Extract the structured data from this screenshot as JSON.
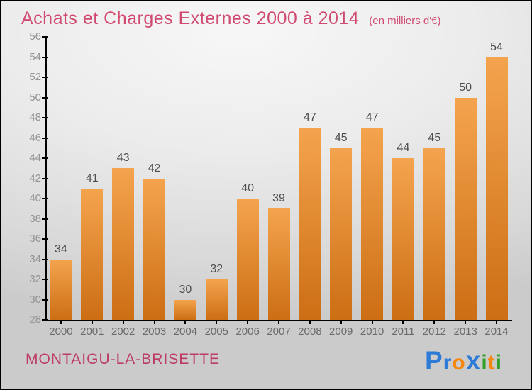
{
  "title": {
    "text": "Achats et Charges Externes 2000 à 2014",
    "subtitle": "(en milliers d'€)"
  },
  "footer": {
    "location": "MONTAIGU-LA-BRISETTE"
  },
  "logo": {
    "name": "Proxiti",
    "letters": [
      {
        "ch": "P",
        "color": "#2d7bd6",
        "big": true
      },
      {
        "ch": "r",
        "color": "#2d7bd6",
        "big": false
      },
      {
        "ch": "o",
        "color": "#f5870f",
        "big": false
      },
      {
        "ch": "x",
        "color": "#2d7bd6",
        "big": true
      },
      {
        "ch": "i",
        "color": "#33a02c",
        "big": false
      },
      {
        "ch": "t",
        "color": "#f5870f",
        "big": false
      },
      {
        "ch": "i",
        "color": "#33a02c",
        "big": false
      }
    ]
  },
  "colors": {
    "title": "#d14a70",
    "footer": "#bd3c64",
    "axis": "#000000",
    "ytick_label": "#949494",
    "xtick_label": "#6a6a6a",
    "value_label": "#4d4d4d",
    "bar_top": "#f4a44e",
    "bar_bottom": "#cc6e14"
  },
  "chart_data": {
    "type": "bar",
    "title": "Achats et Charges Externes 2000 à 2014",
    "subtitle": "(en milliers d'€)",
    "categories": [
      "2000",
      "2001",
      "2002",
      "2003",
      "2004",
      "2005",
      "2006",
      "2007",
      "2008",
      "2009",
      "2010",
      "2011",
      "2012",
      "2013",
      "2014"
    ],
    "values": [
      34,
      41,
      43,
      42,
      30,
      32,
      40,
      39,
      47,
      45,
      47,
      44,
      45,
      50,
      54
    ],
    "ylim": [
      28,
      56
    ],
    "yticks": [
      28,
      30,
      32,
      34,
      36,
      38,
      40,
      42,
      44,
      46,
      48,
      50,
      52,
      54,
      56
    ],
    "grid": false,
    "legend": false,
    "value_labels": true,
    "xlabel": "",
    "ylabel": ""
  }
}
